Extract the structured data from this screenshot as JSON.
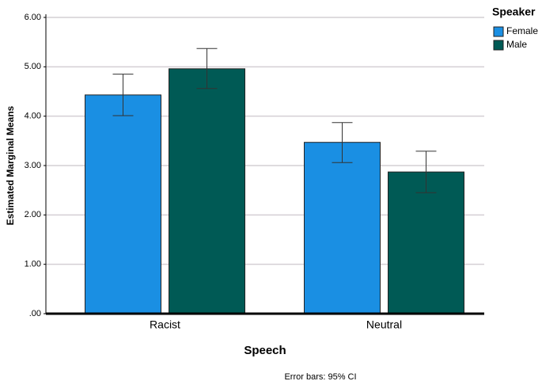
{
  "chart_data": {
    "type": "bar",
    "y_label": "Estimated Marginal Means",
    "x_label": "Speech",
    "legend_title": "Speaker",
    "footnote": "Error bars: 95% CI",
    "categories": [
      "Racist",
      "Neutral"
    ],
    "series": [
      {
        "name": "Female",
        "color": "#1a8fe3",
        "values": [
          4.43,
          3.47
        ],
        "ci_low": [
          4.01,
          3.06
        ],
        "ci_high": [
          4.85,
          3.87
        ]
      },
      {
        "name": "Male",
        "color": "#005a55",
        "values": [
          4.96,
          2.87
        ],
        "ci_low": [
          4.56,
          2.45
        ],
        "ci_high": [
          5.37,
          3.29
        ]
      }
    ],
    "ylim": [
      0,
      6
    ],
    "yticks": [
      {
        "value": 0,
        "label": ".00"
      },
      {
        "value": 1,
        "label": "1.00"
      },
      {
        "value": 2,
        "label": "2.00"
      },
      {
        "value": 3,
        "label": "3.00"
      },
      {
        "value": 4,
        "label": "4.00"
      },
      {
        "value": 5,
        "label": "5.00"
      },
      {
        "value": 6,
        "label": "6.00"
      }
    ],
    "grid": true,
    "legend_position": "top-right"
  }
}
